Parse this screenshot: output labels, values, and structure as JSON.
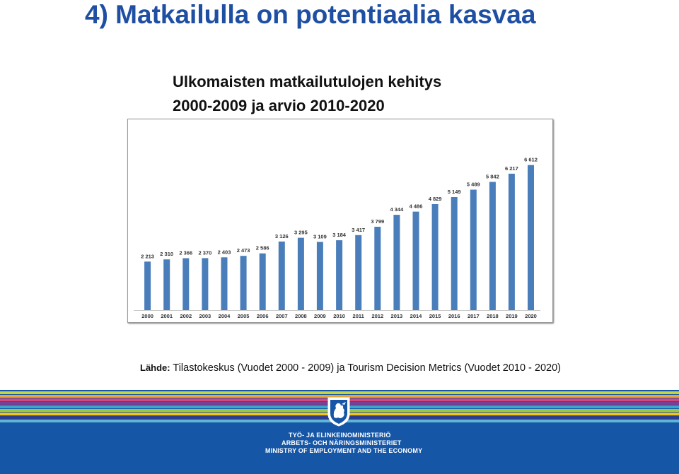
{
  "title": "4) Matkailulla on potentiaalia kasvaa",
  "subtitle": {
    "line1": "Ulkomaisten matkailutulojen kehitys",
    "line2": "2000-2009 ja arvio 2010-2020"
  },
  "source": {
    "label": "Lähde:",
    "text": " Tilastokeskus (Vuodet 2000 - 2009) ja Tourism Decision Metrics (Vuodet 2010 - 2020)"
  },
  "footer": {
    "ministry_fi": "TYÖ- JA ELINKEINOMINISTERIÖ",
    "ministry_sv": "ARBETS- OCH NÄRINGSMINISTERIET",
    "ministry_en": "MINISTRY OF EMPLOYMENT AND THE ECONOMY",
    "logo_icon": "lion-crest-icon"
  },
  "colors": {
    "title": "#1f4fa3",
    "bar_actual": "#4a7ebb",
    "bar_forecast": "#4a7ebb",
    "footer": "#1656a6"
  },
  "chart_data": {
    "type": "bar",
    "categories": [
      "2000",
      "2001",
      "2002",
      "2003",
      "2004",
      "2005",
      "2006",
      "2007",
      "2008",
      "2009",
      "2010",
      "2011",
      "2012",
      "2013",
      "2014",
      "2015",
      "2016",
      "2017",
      "2018",
      "2019",
      "2020"
    ],
    "values": [
      2213,
      2310,
      2366,
      2370,
      2403,
      2473,
      2586,
      3126,
      3295,
      3109,
      3184,
      3417,
      3799,
      4344,
      4486,
      4829,
      5149,
      5489,
      5842,
      6217,
      6612
    ],
    "value_labels": [
      "2 213",
      "2 310",
      "2 366",
      "2 370",
      "2 403",
      "2 473",
      "2 586",
      "3 126",
      "3 295",
      "3 109",
      "3 184",
      "3 417",
      "3 799",
      "4 344",
      "4 486",
      "4 829",
      "5 149",
      "5 489",
      "5 842",
      "6 217",
      "6 612"
    ],
    "title": "",
    "xlabel": "",
    "ylabel": "",
    "ylim": [
      0,
      7000
    ],
    "grid": false,
    "legend": "none"
  }
}
